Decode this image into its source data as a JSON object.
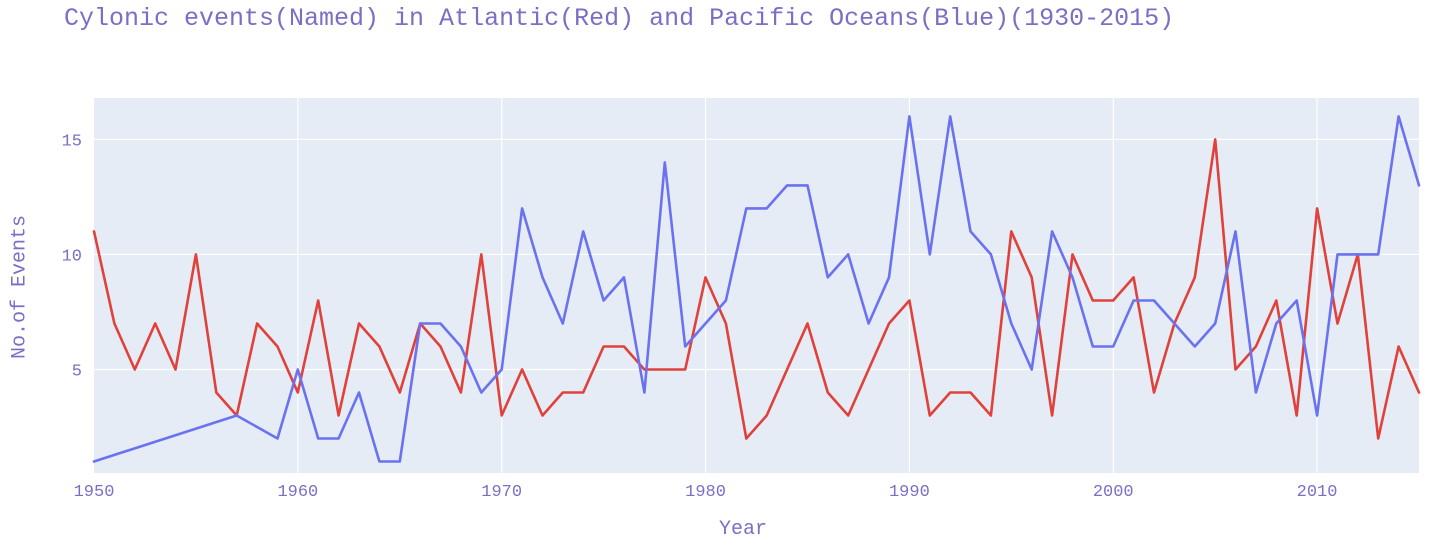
{
  "chart_data": {
    "type": "line",
    "title": "Cylonic events(Named) in Atlantic(Red) and Pacific Oceans(Blue)(1930-2015)",
    "xlabel": "Year",
    "ylabel": "No.of Events",
    "xlim": [
      1950,
      2015
    ],
    "ylim": [
      0.5,
      16.8
    ],
    "x_ticks": [
      1950,
      1960,
      1970,
      1980,
      1990,
      2000,
      2010
    ],
    "y_ticks": [
      5,
      10,
      15
    ],
    "grid": true,
    "legend": "none",
    "series": [
      {
        "color": "#e0413a",
        "points": [
          [
            1950,
            11
          ],
          [
            1951,
            7
          ],
          [
            1952,
            5
          ],
          [
            1953,
            7
          ],
          [
            1954,
            5
          ],
          [
            1955,
            10
          ],
          [
            1956,
            4
          ],
          [
            1957,
            3
          ],
          [
            1958,
            7
          ],
          [
            1959,
            6
          ],
          [
            1960,
            4
          ],
          [
            1961,
            8
          ],
          [
            1962,
            3
          ],
          [
            1963,
            7
          ],
          [
            1964,
            6
          ],
          [
            1965,
            4
          ],
          [
            1966,
            7
          ],
          [
            1967,
            6
          ],
          [
            1968,
            4
          ],
          [
            1969,
            10
          ],
          [
            1970,
            3
          ],
          [
            1971,
            5
          ],
          [
            1972,
            3
          ],
          [
            1973,
            4
          ],
          [
            1974,
            4
          ],
          [
            1975,
            6
          ],
          [
            1976,
            6
          ],
          [
            1977,
            5
          ],
          [
            1978,
            5
          ],
          [
            1979,
            5
          ],
          [
            1980,
            9
          ],
          [
            1981,
            7
          ],
          [
            1982,
            2
          ],
          [
            1983,
            3
          ],
          [
            1984,
            5
          ],
          [
            1985,
            7
          ],
          [
            1986,
            4
          ],
          [
            1987,
            3
          ],
          [
            1988,
            5
          ],
          [
            1989,
            7
          ],
          [
            1990,
            8
          ],
          [
            1991,
            3
          ],
          [
            1992,
            4
          ],
          [
            1993,
            4
          ],
          [
            1994,
            3
          ],
          [
            1995,
            11
          ],
          [
            1996,
            9
          ],
          [
            1997,
            3
          ],
          [
            1998,
            10
          ],
          [
            1999,
            8
          ],
          [
            2000,
            8
          ],
          [
            2001,
            9
          ],
          [
            2002,
            4
          ],
          [
            2003,
            7
          ],
          [
            2004,
            9
          ],
          [
            2005,
            15
          ],
          [
            2006,
            5
          ],
          [
            2007,
            6
          ],
          [
            2008,
            8
          ],
          [
            2009,
            3
          ],
          [
            2010,
            12
          ],
          [
            2011,
            7
          ],
          [
            2012,
            10
          ],
          [
            2013,
            2
          ],
          [
            2014,
            6
          ],
          [
            2015,
            4
          ]
        ]
      },
      {
        "color": "#6b72f0",
        "points": [
          [
            1950,
            1
          ],
          [
            1957,
            3
          ],
          [
            1959,
            2
          ],
          [
            1960,
            5
          ],
          [
            1961,
            2
          ],
          [
            1962,
            2
          ],
          [
            1963,
            4
          ],
          [
            1964,
            1
          ],
          [
            1965,
            1
          ],
          [
            1966,
            7
          ],
          [
            1967,
            7
          ],
          [
            1968,
            6
          ],
          [
            1969,
            4
          ],
          [
            1970,
            5
          ],
          [
            1971,
            12
          ],
          [
            1972,
            9
          ],
          [
            1973,
            7
          ],
          [
            1974,
            11
          ],
          [
            1975,
            8
          ],
          [
            1976,
            9
          ],
          [
            1977,
            4
          ],
          [
            1978,
            14
          ],
          [
            1979,
            6
          ],
          [
            1980,
            7
          ],
          [
            1981,
            8
          ],
          [
            1982,
            12
          ],
          [
            1983,
            12
          ],
          [
            1984,
            13
          ],
          [
            1985,
            13
          ],
          [
            1986,
            9
          ],
          [
            1987,
            10
          ],
          [
            1988,
            7
          ],
          [
            1989,
            9
          ],
          [
            1990,
            16
          ],
          [
            1991,
            10
          ],
          [
            1992,
            16
          ],
          [
            1993,
            11
          ],
          [
            1994,
            10
          ],
          [
            1995,
            7
          ],
          [
            1996,
            5
          ],
          [
            1997,
            11
          ],
          [
            1998,
            9
          ],
          [
            1999,
            6
          ],
          [
            2000,
            6
          ],
          [
            2001,
            8
          ],
          [
            2002,
            8
          ],
          [
            2003,
            7
          ],
          [
            2004,
            6
          ],
          [
            2005,
            7
          ],
          [
            2006,
            11
          ],
          [
            2007,
            4
          ],
          [
            2008,
            7
          ],
          [
            2009,
            8
          ],
          [
            2010,
            3
          ],
          [
            2011,
            10
          ],
          [
            2012,
            10
          ],
          [
            2013,
            10
          ],
          [
            2014,
            16
          ],
          [
            2015,
            13
          ]
        ]
      }
    ]
  },
  "colors": {
    "plot_background": "#e5ecf6",
    "grid": "#ffffff",
    "text": "#7a6fc6"
  }
}
